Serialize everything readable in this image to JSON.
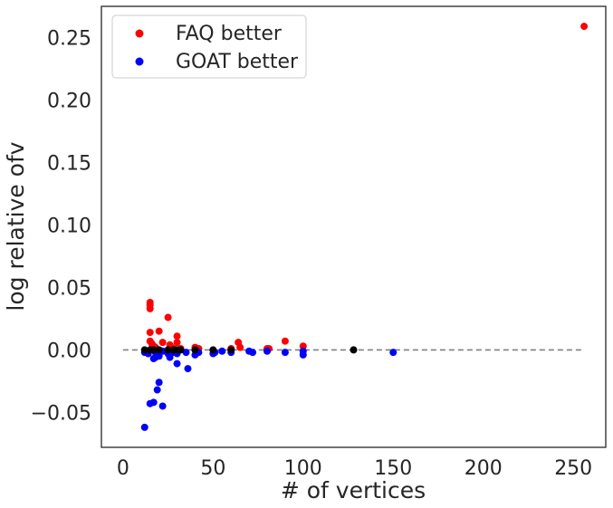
{
  "chart_data": {
    "type": "scatter",
    "title": "",
    "xlabel": "# of vertices",
    "ylabel": "log relative ofv",
    "xlim": [
      -12,
      268
    ],
    "ylim": [
      -0.078,
      0.275
    ],
    "x_ticks": [
      0,
      50,
      100,
      150,
      200,
      250
    ],
    "y_ticks": [
      -0.05,
      0.0,
      0.05,
      0.1,
      0.15,
      0.2,
      0.25
    ],
    "x_tick_labels": [
      "0",
      "50",
      "100",
      "150",
      "200",
      "250"
    ],
    "y_tick_labels": [
      "−0.05",
      "0.00",
      "0.05",
      "0.10",
      "0.15",
      "0.20",
      "0.25"
    ],
    "grid": false,
    "legend_position": "top-left",
    "reference_line": {
      "y": 0.0,
      "x_range": [
        0,
        256
      ],
      "style": "dashed",
      "color": "#808080"
    },
    "series": [
      {
        "name": "FAQ better",
        "color": "#ff0000",
        "points": [
          [
            15,
            0.038
          ],
          [
            15,
            0.036
          ],
          [
            15,
            0.033
          ],
          [
            15,
            0.014
          ],
          [
            15,
            0.007
          ],
          [
            16,
            0.005
          ],
          [
            17,
            0.003
          ],
          [
            18,
            0.002
          ],
          [
            20,
            0.015
          ],
          [
            22,
            0.006
          ],
          [
            25,
            0.026
          ],
          [
            26,
            0.004
          ],
          [
            27,
            0.002
          ],
          [
            28,
            0.001
          ],
          [
            30,
            0.011
          ],
          [
            30,
            0.006
          ],
          [
            32,
            0.001
          ],
          [
            40,
            0.002
          ],
          [
            42,
            0.001
          ],
          [
            60,
            0.001
          ],
          [
            64,
            0.006
          ],
          [
            65,
            0.002
          ],
          [
            80,
            0.001
          ],
          [
            81,
            0.001
          ],
          [
            90,
            0.007
          ],
          [
            100,
            0.003
          ],
          [
            256,
            0.259
          ]
        ]
      },
      {
        "name": "GOAT better",
        "color": "#0000ff",
        "points": [
          [
            12,
            -0.062
          ],
          [
            12,
            -0.002
          ],
          [
            14,
            -0.003
          ],
          [
            15,
            -0.043
          ],
          [
            17,
            -0.042
          ],
          [
            17,
            -0.007
          ],
          [
            18,
            -0.006
          ],
          [
            18,
            -0.002
          ],
          [
            19,
            -0.032
          ],
          [
            20,
            -0.026
          ],
          [
            20,
            -0.005
          ],
          [
            22,
            -0.045
          ],
          [
            22,
            -0.001
          ],
          [
            25,
            -0.003
          ],
          [
            26,
            -0.006
          ],
          [
            28,
            -0.002
          ],
          [
            30,
            -0.011
          ],
          [
            30,
            -0.003
          ],
          [
            35,
            -0.002
          ],
          [
            36,
            -0.015
          ],
          [
            40,
            -0.004
          ],
          [
            42,
            -0.002
          ],
          [
            50,
            -0.003
          ],
          [
            51,
            -0.002
          ],
          [
            55,
            -0.001
          ],
          [
            60,
            -0.002
          ],
          [
            70,
            -0.001
          ],
          [
            72,
            -0.002
          ],
          [
            80,
            -0.001
          ],
          [
            90,
            -0.002
          ],
          [
            100,
            -0.001
          ],
          [
            100,
            -0.004
          ],
          [
            150,
            -0.002
          ]
        ]
      },
      {
        "color": "#000000",
        "points": [
          [
            12,
            0.0
          ],
          [
            15,
            0.0
          ],
          [
            17,
            0.0
          ],
          [
            20,
            0.0
          ],
          [
            25,
            0.0
          ],
          [
            28,
            0.0
          ],
          [
            30,
            0.0
          ],
          [
            32,
            0.0
          ],
          [
            40,
            0.0
          ],
          [
            50,
            0.0
          ],
          [
            60,
            0.0
          ],
          [
            128,
            0.0
          ]
        ]
      }
    ]
  }
}
